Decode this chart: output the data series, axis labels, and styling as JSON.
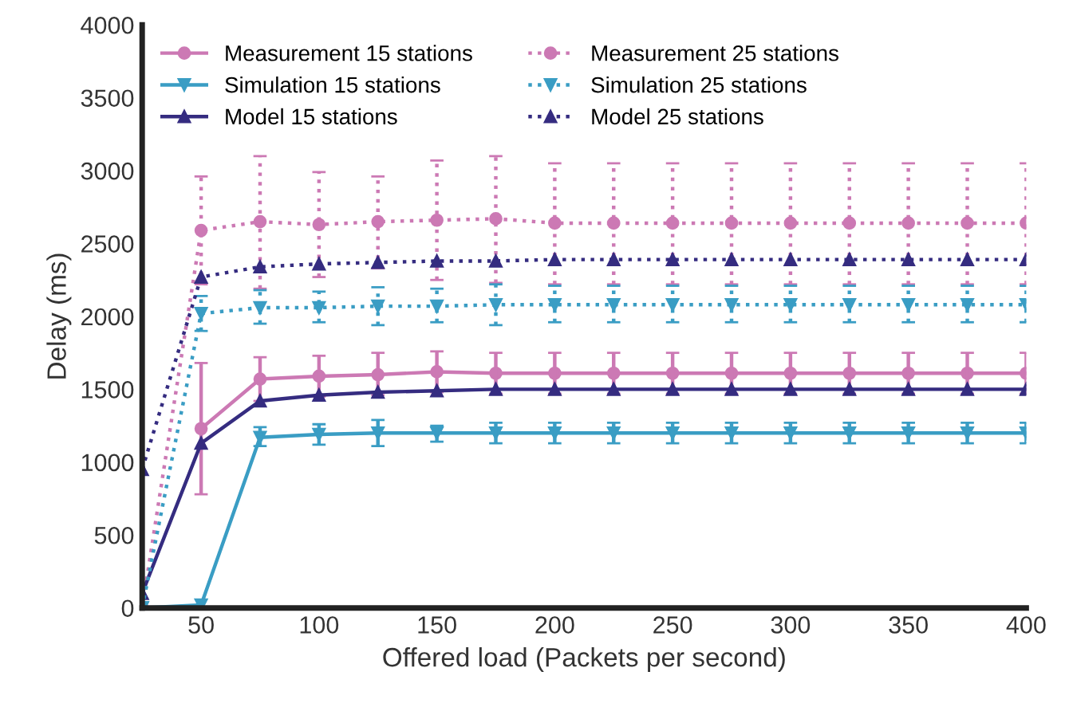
{
  "chart_data": {
    "type": "line",
    "xlabel": "Offered load (Packets per second)",
    "ylabel": "Delay (ms)",
    "x": [
      25,
      50,
      75,
      100,
      125,
      150,
      175,
      200,
      225,
      250,
      275,
      300,
      325,
      350,
      375,
      400
    ],
    "xlim": [
      25,
      400
    ],
    "xticks": [
      50,
      100,
      150,
      200,
      250,
      300,
      350,
      400
    ],
    "ylim": [
      0,
      4000
    ],
    "yticks": [
      0,
      500,
      1000,
      1500,
      2000,
      2500,
      3000,
      3500,
      4000
    ],
    "grid": false,
    "legend": "top left",
    "series": [
      {
        "name": "Measurement 15 stations",
        "color": "#cc79b4",
        "marker": "circle",
        "line_style": "solid",
        "values": [
          null,
          1230,
          1570,
          1590,
          1600,
          1620,
          1610,
          1610,
          1610,
          1610,
          1610,
          1610,
          1610,
          1610,
          1610,
          1610
        ],
        "errors": [
          null,
          [
            780,
            1680
          ],
          [
            1420,
            1720
          ],
          [
            1450,
            1730
          ],
          [
            1460,
            1750
          ],
          [
            1480,
            1760
          ],
          [
            1470,
            1750
          ],
          [
            1470,
            1750
          ],
          [
            1470,
            1750
          ],
          [
            1470,
            1750
          ],
          [
            1470,
            1750
          ],
          [
            1470,
            1750
          ],
          [
            1470,
            1750
          ],
          [
            1470,
            1750
          ],
          [
            1470,
            1750
          ],
          [
            1470,
            1750
          ]
        ]
      },
      {
        "name": "Simulation 15 stations",
        "color": "#3a9dc4",
        "marker": "triangle_down",
        "line_style": "solid",
        "values": [
          0,
          20,
          1170,
          1190,
          1200,
          1200,
          1200,
          1200,
          1200,
          1200,
          1200,
          1200,
          1200,
          1200,
          1200,
          1200
        ],
        "errors": [
          null,
          null,
          [
            1110,
            1240
          ],
          [
            1120,
            1260
          ],
          [
            1110,
            1290
          ],
          [
            1140,
            1250
          ],
          [
            1130,
            1270
          ],
          [
            1130,
            1270
          ],
          [
            1130,
            1270
          ],
          [
            1130,
            1270
          ],
          [
            1130,
            1270
          ],
          [
            1130,
            1270
          ],
          [
            1130,
            1270
          ],
          [
            1130,
            1270
          ],
          [
            1130,
            1270
          ],
          [
            1130,
            1270
          ]
        ]
      },
      {
        "name": "Model 15 stations",
        "color": "#352c80",
        "marker": "triangle",
        "line_style": "solid",
        "values": [
          100,
          1130,
          1420,
          1460,
          1480,
          1490,
          1500,
          1500,
          1500,
          1500,
          1500,
          1500,
          1500,
          1500,
          1500,
          1500
        ]
      },
      {
        "name": "Measurement 25 stations",
        "color": "#cc79b4",
        "marker": "circle",
        "line_style": "dotted",
        "values": [
          0,
          2590,
          2650,
          2630,
          2650,
          2660,
          2670,
          2640,
          2640,
          2640,
          2640,
          2640,
          2640,
          2640,
          2640,
          2640
        ],
        "errors": [
          null,
          [
            2220,
            2960
          ],
          [
            2190,
            3100
          ],
          [
            2270,
            2990
          ],
          [
            2330,
            2960
          ],
          [
            2250,
            3070
          ],
          [
            2230,
            3100
          ],
          [
            2220,
            3050
          ],
          [
            2220,
            3050
          ],
          [
            2220,
            3050
          ],
          [
            2220,
            3050
          ],
          [
            2220,
            3050
          ],
          [
            2220,
            3050
          ],
          [
            2220,
            3050
          ],
          [
            2220,
            3050
          ],
          [
            2220,
            3050
          ]
        ]
      },
      {
        "name": "Simulation 25 stations",
        "color": "#3a9dc4",
        "marker": "triangle_down",
        "line_style": "dotted",
        "values": [
          0,
          2020,
          2060,
          2060,
          2070,
          2070,
          2080,
          2080,
          2080,
          2080,
          2080,
          2080,
          2080,
          2080,
          2080,
          2080
        ],
        "errors": [
          null,
          [
            1900,
            2140
          ],
          [
            1950,
            2180
          ],
          [
            1960,
            2170
          ],
          [
            1940,
            2200
          ],
          [
            1960,
            2190
          ],
          [
            1940,
            2220
          ],
          [
            1960,
            2210
          ],
          [
            1960,
            2210
          ],
          [
            1960,
            2210
          ],
          [
            1960,
            2210
          ],
          [
            1960,
            2210
          ],
          [
            1960,
            2210
          ],
          [
            1960,
            2210
          ],
          [
            1960,
            2210
          ],
          [
            1960,
            2210
          ]
        ]
      },
      {
        "name": "Model 25 stations",
        "color": "#352c80",
        "marker": "triangle",
        "line_style": "dotted",
        "values": [
          950,
          2270,
          2340,
          2360,
          2370,
          2380,
          2380,
          2390,
          2390,
          2390,
          2390,
          2390,
          2390,
          2390,
          2390,
          2390
        ]
      }
    ]
  }
}
